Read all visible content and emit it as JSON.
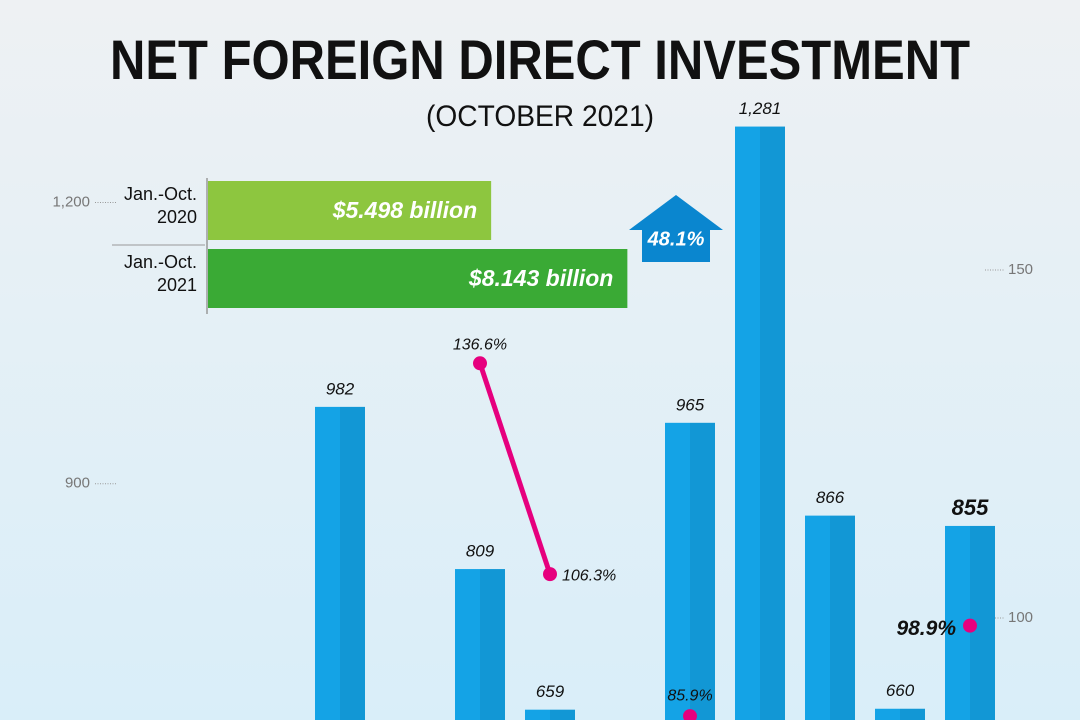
{
  "chart_data": {
    "type": "bar",
    "title": "NET FOREIGN DIRECT INVESTMENT",
    "subtitle": "(OCTOBER 2021)",
    "categories": [
      null,
      null,
      null,
      null,
      null,
      null,
      null,
      null,
      null,
      null
    ],
    "series": [
      {
        "type": "bar",
        "color": "#14a3e6",
        "values": [
          982,
          null,
          809,
          659,
          null,
          965,
          1281,
          866,
          660,
          855
        ],
        "value_labels": [
          "982",
          null,
          "809",
          "659",
          null,
          "965",
          "1,281",
          "866",
          "660",
          "855"
        ]
      },
      {
        "type": "line",
        "axis": "y2",
        "color": "#e6007e",
        "values": [
          null,
          null,
          136.6,
          106.3,
          null,
          85.9,
          null,
          null,
          null,
          98.9
        ],
        "value_labels": [
          null,
          null,
          "136.6%",
          "106.3%",
          null,
          "85.9%",
          null,
          null,
          null,
          "98.9%"
        ]
      }
    ],
    "ylim": [
      648,
      1416
    ],
    "yticks": [
      900,
      {
        "value": 1200,
        "label": "1,200"
      }
    ],
    "y2lim": [
      85.34,
      188.8
    ],
    "y2ticks": [
      100,
      150
    ],
    "comparison": {
      "type": "bar",
      "categories": [
        "Jan.-Oct. 2020",
        "Jan.-Oct. 2021"
      ],
      "values": [
        5.498,
        8.143
      ],
      "value_labels": [
        "$5.498 billion",
        "$8.143 billion"
      ],
      "colors": [
        "#8dc63f",
        "#3aaa35"
      ],
      "xlim": [
        0,
        10
      ]
    },
    "change_label": "48.1%"
  }
}
